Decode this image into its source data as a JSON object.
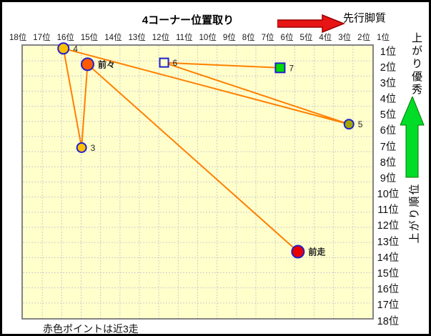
{
  "title": "4コーナー位置取り",
  "annotations": {
    "front_runner_label": "先行脚質",
    "agari_excellent_label": "上がり優秀",
    "agari_rank_label": "上がり順位",
    "footnote": "赤色ポイントは近3走"
  },
  "colors": {
    "plot_background": "#FFFFCC",
    "grid": "#CCCCCC",
    "plot_border": "#848484",
    "connector_line": "#FF8000",
    "marker_stroke": "#2020CC",
    "recent_point_red": "#E80000",
    "gold_point": "#FFC000",
    "orange_point": "#FF5A00",
    "olive_point": "#A0A800",
    "green_point": "#00DC00",
    "empty_point": "#FFFFCC",
    "red_arrow": "#E81515",
    "red_arrow_outline": "#990000",
    "green_arrow": "#00DC28",
    "green_arrow_outline": "#007700"
  },
  "chart_data": {
    "type": "scatter",
    "title": "4コーナー位置取り",
    "x_axis": {
      "meaning": "4コーナー通過順位 (右ほど先行)",
      "labels": [
        "18位",
        "17位",
        "16位",
        "15位",
        "14位",
        "13位",
        "12位",
        "11位",
        "10位",
        "9位",
        "8位",
        "7位",
        "6位",
        "5位",
        "4位",
        "3位",
        "2位",
        "1位"
      ],
      "range_left_to_right": [
        18,
        1
      ],
      "grid": true
    },
    "y_axis": {
      "meaning": "上がり順位 (上ほど優秀)",
      "labels": [
        "1位",
        "2位",
        "3位",
        "4位",
        "5位",
        "6位",
        "7位",
        "8位",
        "9位",
        "10位",
        "11位",
        "12位",
        "13位",
        "14位",
        "15位",
        "16位",
        "17位",
        "18位"
      ],
      "range_top_to_bottom": [
        1,
        18
      ],
      "grid": true
    },
    "points": [
      {
        "label": "前走",
        "corner_rank_est": 5,
        "agari_rank_est": 14,
        "fx": 0.787,
        "fy": 0.756,
        "marker": "circle",
        "fill_key": "recent_point_red",
        "size": 17,
        "bold": true
      },
      {
        "label": "前々",
        "corner_rank_est": 15,
        "agari_rank_est": 2,
        "fx": 0.185,
        "fy": 0.068,
        "marker": "circle",
        "fill_key": "orange_point",
        "size": 17,
        "bold": true
      },
      {
        "label": "3",
        "corner_rank_est": 15,
        "agari_rank_est": 7,
        "fx": 0.168,
        "fy": 0.374,
        "marker": "circle",
        "fill_key": "gold_point",
        "size": 13,
        "bold": false
      },
      {
        "label": "4",
        "corner_rank_est": 16,
        "agari_rank_est": 1,
        "fx": 0.116,
        "fy": 0.01,
        "marker": "circle",
        "fill_key": "gold_point",
        "size": 15,
        "bold": false
      },
      {
        "label": "5",
        "corner_rank_est": 2,
        "agari_rank_est": 6,
        "fx": 0.933,
        "fy": 0.288,
        "marker": "circle",
        "fill_key": "olive_point",
        "size": 13,
        "bold": false
      },
      {
        "label": "6",
        "corner_rank_est": 11,
        "agari_rank_est": 2,
        "fx": 0.404,
        "fy": 0.062,
        "marker": "square",
        "fill_key": "empty_point",
        "size": 12,
        "bold": false
      },
      {
        "label": "7",
        "corner_rank_est": 6,
        "agari_rank_est": 2,
        "fx": 0.736,
        "fy": 0.081,
        "marker": "square",
        "fill_key": "green_point",
        "size": 13,
        "bold": false
      }
    ],
    "path_order": [
      "前走",
      "前々",
      "3",
      "4",
      "5",
      "6",
      "7"
    ],
    "legend_note": "赤色ポイントは近3走"
  }
}
